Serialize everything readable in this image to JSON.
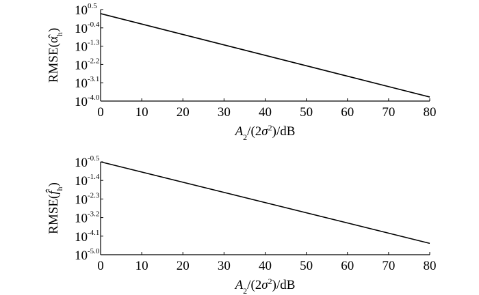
{
  "chart_data": [
    {
      "type": "line",
      "log_scale": true,
      "color": "#000000",
      "ylabel": [
        {
          "text": "RMSE(α̂"
        },
        {
          "text": "h",
          "sub": true
        },
        {
          "text": ")"
        }
      ],
      "xlabel": [
        {
          "text": "A",
          "italic": true
        },
        {
          "text": "2",
          "sub": true
        },
        {
          "text": "/(2"
        },
        {
          "text": "σ",
          "italic": true
        },
        {
          "text": "2",
          "sup": true
        },
        {
          "text": ")/dB"
        }
      ],
      "x": [
        0,
        80
      ],
      "values": [
        1.995,
        0.000158
      ],
      "xlim": [
        0,
        80
      ],
      "xticks": [
        0,
        10,
        20,
        30,
        40,
        50,
        60,
        70,
        80
      ],
      "ylim": [
        0.0001,
        3.1623
      ],
      "yticks": [
        {
          "value": 3.1623,
          "label": "10",
          "exponent": "0.5"
        },
        {
          "value": 0.3981,
          "label": "10",
          "exponent": "-0.4"
        },
        {
          "value": 0.05012,
          "label": "10",
          "exponent": "-1.3"
        },
        {
          "value": 0.00631,
          "label": "10",
          "exponent": "-2.2"
        },
        {
          "value": 0.0007943,
          "label": "10",
          "exponent": "-3.1"
        },
        {
          "value": 0.0001,
          "label": "10",
          "exponent": "-4.0"
        }
      ]
    },
    {
      "type": "line",
      "log_scale": true,
      "color": "#000000",
      "ylabel": [
        {
          "text": "RMSE("
        },
        {
          "text": "f̂",
          "italic": true
        },
        {
          "text": "h",
          "sub": true
        },
        {
          "text": ")"
        }
      ],
      "xlabel": [
        {
          "text": "A",
          "italic": true
        },
        {
          "text": "2",
          "sub": true
        },
        {
          "text": "/(2"
        },
        {
          "text": "σ",
          "italic": true
        },
        {
          "text": "2",
          "sup": true
        },
        {
          "text": ")/dB"
        }
      ],
      "x": [
        0,
        80
      ],
      "values": [
        0.3162,
        3.55e-05
      ],
      "xlim": [
        0,
        80
      ],
      "xticks": [
        0,
        10,
        20,
        30,
        40,
        50,
        60,
        70,
        80
      ],
      "ylim": [
        1e-05,
        0.3162
      ],
      "yticks": [
        {
          "value": 0.3162,
          "label": "10",
          "exponent": "-0.5"
        },
        {
          "value": 0.03981,
          "label": "10",
          "exponent": "-1.4"
        },
        {
          "value": 0.005012,
          "label": "10",
          "exponent": "-2.3"
        },
        {
          "value": 0.000631,
          "label": "10",
          "exponent": "-3.2"
        },
        {
          "value": 7.943e-05,
          "label": "10",
          "exponent": "-4.1"
        },
        {
          "value": 1e-05,
          "label": "10",
          "exponent": "-5.0"
        }
      ]
    }
  ]
}
